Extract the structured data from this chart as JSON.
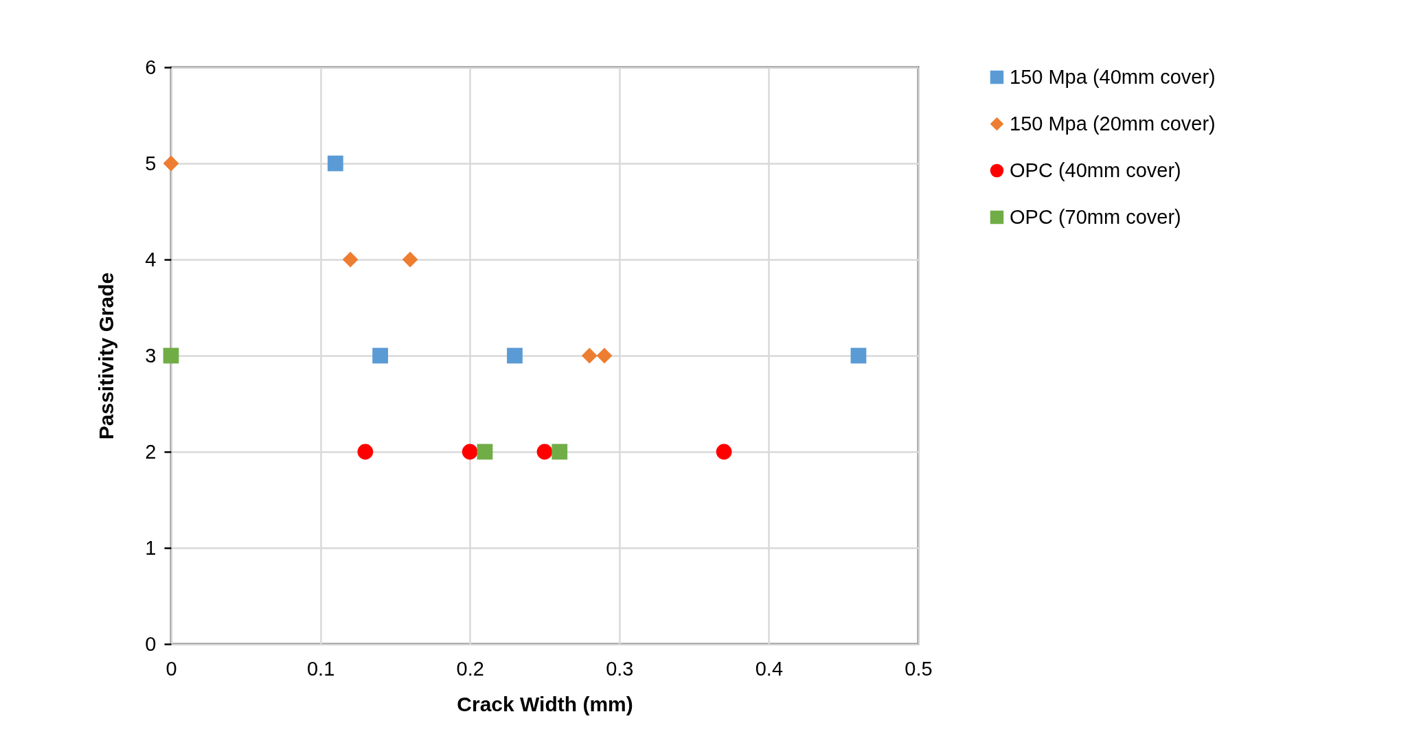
{
  "chart_data": {
    "type": "scatter",
    "xlabel": "Crack Width (mm)",
    "ylabel": "Passitivity Grade",
    "xlim": [
      0,
      0.5
    ],
    "xticks": [
      0,
      0.1,
      0.2,
      0.3,
      0.4,
      0.5
    ],
    "ylim": [
      0,
      6
    ],
    "yticks": [
      0,
      1,
      2,
      3,
      4,
      5,
      6
    ],
    "grid": true,
    "legend": "right",
    "series": [
      {
        "name": "150 Mpa (40mm cover)",
        "color": "#5b9bd5",
        "marker": "square",
        "x": [
          0.11,
          0.14,
          0.23,
          0.46
        ],
        "values": [
          5,
          3,
          3,
          3
        ]
      },
      {
        "name": "150 Mpa (20mm cover)",
        "color": "#ed7d31",
        "marker": "diamond",
        "x": [
          0,
          0.12,
          0.16,
          0.28,
          0.29
        ],
        "values": [
          5,
          4,
          4,
          3,
          3
        ]
      },
      {
        "name": "OPC (40mm cover)",
        "color": "#ff0000",
        "marker": "circle",
        "x": [
          0.13,
          0.2,
          0.25,
          0.37
        ],
        "values": [
          2,
          2,
          2,
          2
        ]
      },
      {
        "name": "OPC (70mm cover)",
        "color": "#70ad47",
        "marker": "square",
        "x": [
          0,
          0.21,
          0.26
        ],
        "values": [
          3,
          2,
          2
        ]
      }
    ]
  }
}
